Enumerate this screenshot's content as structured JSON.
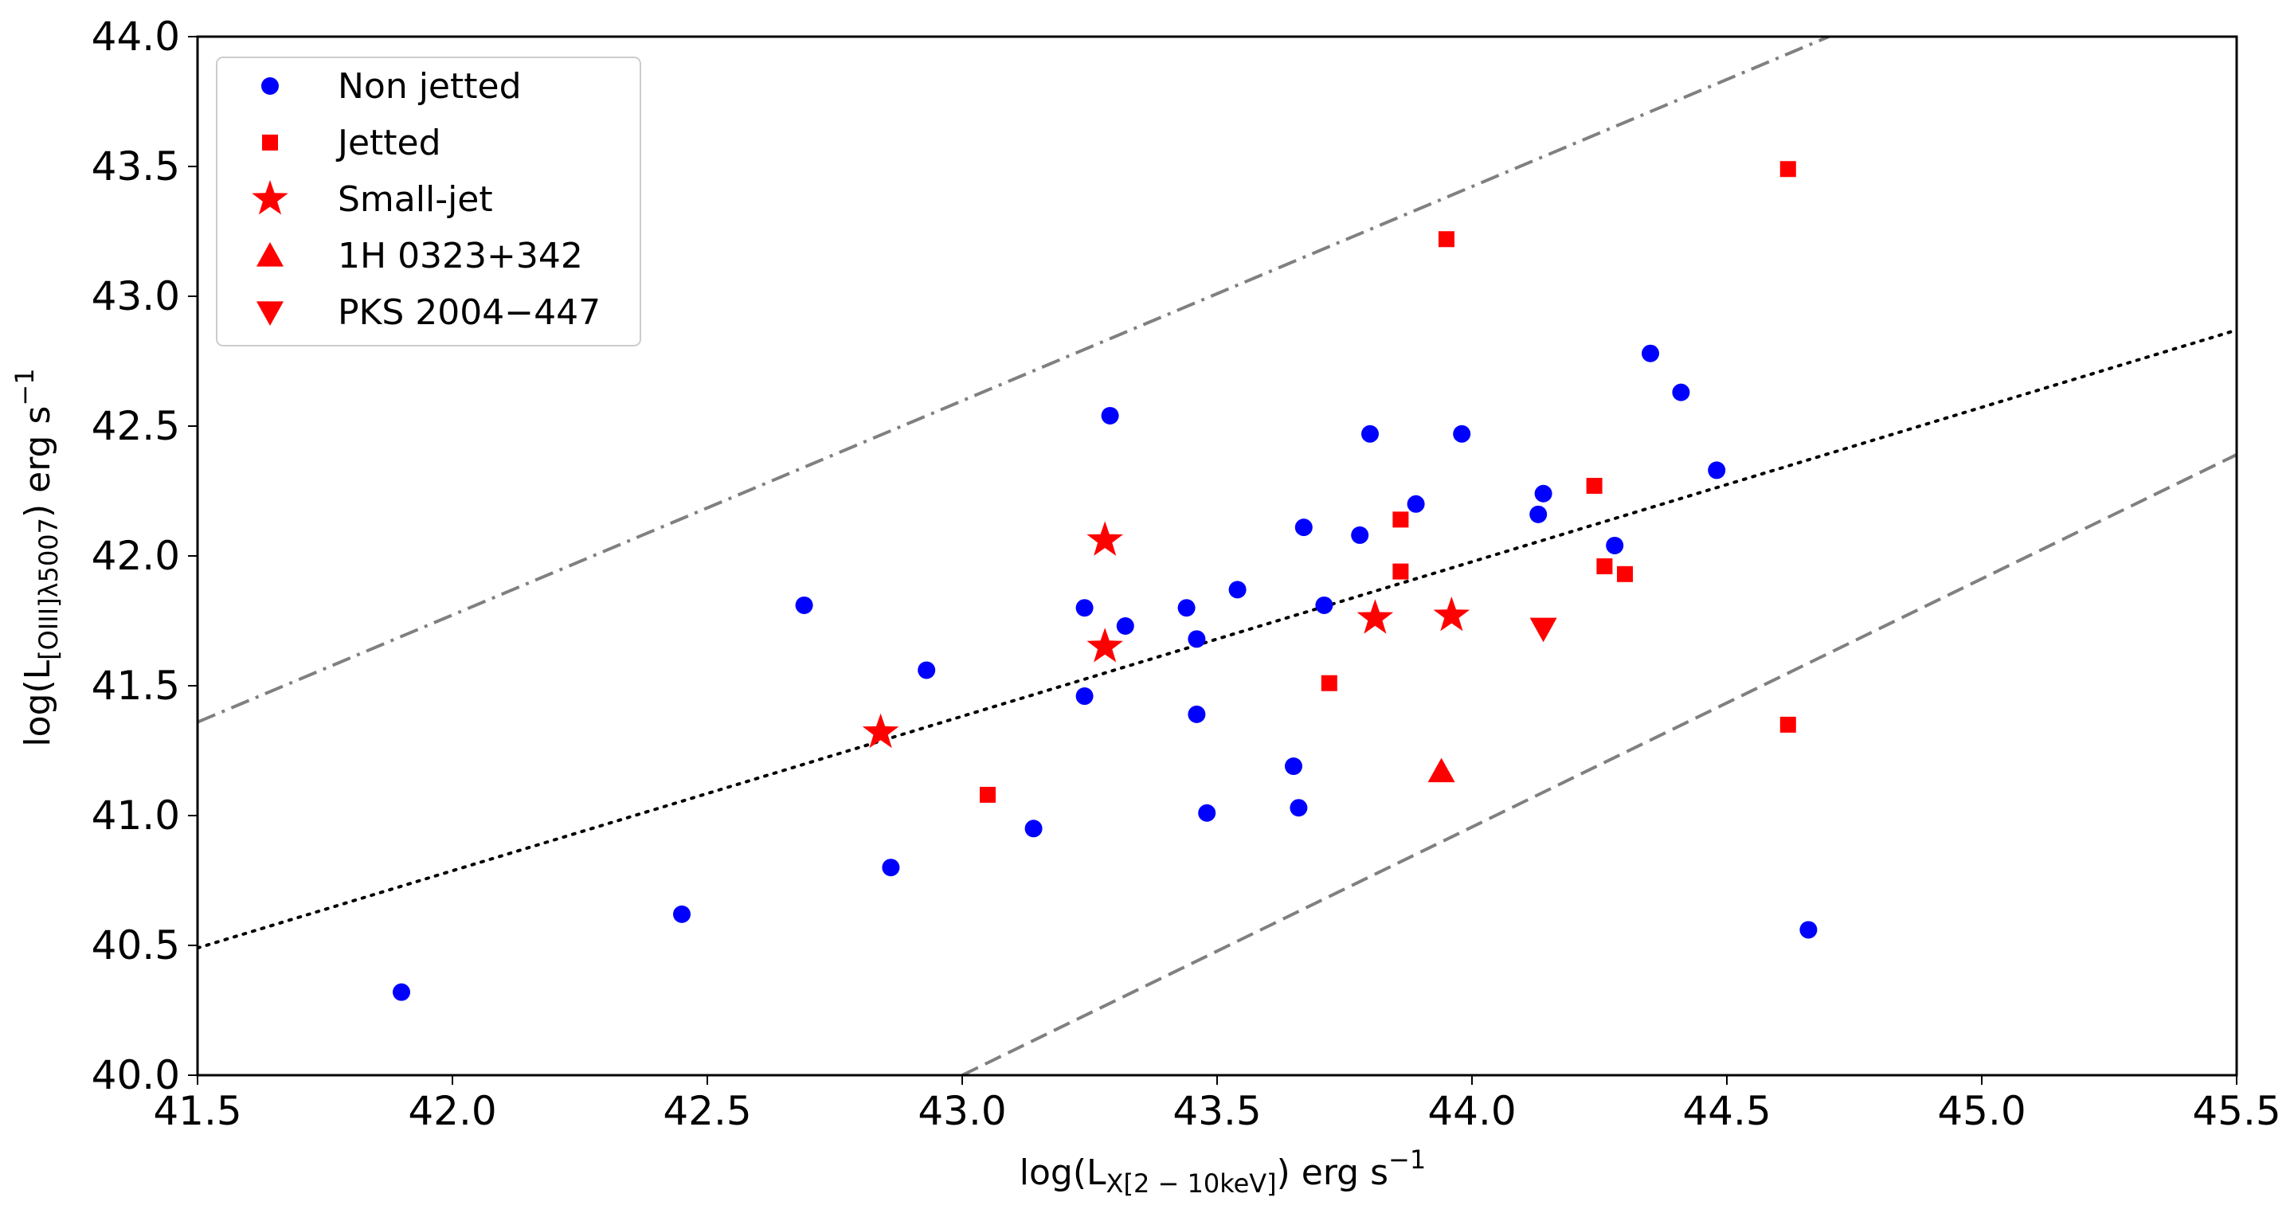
{
  "chart_data": {
    "type": "scatter",
    "xlabel": {
      "pre": "log(L",
      "sub": "X[2 − 10keV]",
      "post": ") erg s",
      "sup": "−1"
    },
    "ylabel": {
      "pre": "log(L",
      "sub": "[OIII]λ5007",
      "post": ") erg s",
      "sup": "−1"
    },
    "xlim": [
      41.5,
      45.5
    ],
    "ylim": [
      40.0,
      44.0
    ],
    "xticks": [
      "41.5",
      "42.0",
      "42.5",
      "43.0",
      "43.5",
      "44.0",
      "44.5",
      "45.0",
      "45.5"
    ],
    "yticks": [
      "40.0",
      "40.5",
      "41.0",
      "41.5",
      "42.0",
      "42.5",
      "43.0",
      "43.5",
      "44.0"
    ],
    "grid": false,
    "legend_position": "upper-left",
    "lines": [
      {
        "style": "dotted",
        "color": "#000000",
        "points": [
          [
            41.5,
            40.49
          ],
          [
            45.5,
            42.87
          ]
        ]
      },
      {
        "style": "dashdot",
        "color": "#808080",
        "points": [
          [
            41.5,
            41.36
          ],
          [
            44.7,
            44.0
          ]
        ]
      },
      {
        "style": "dashed",
        "color": "#808080",
        "points": [
          [
            43.0,
            40.0
          ],
          [
            45.5,
            42.39
          ]
        ]
      }
    ],
    "series": [
      {
        "name": "Non jetted",
        "marker": "circle",
        "color": "#0000ff",
        "points": [
          [
            41.9,
            40.32
          ],
          [
            42.45,
            40.62
          ],
          [
            42.69,
            41.81
          ],
          [
            42.86,
            40.8
          ],
          [
            42.93,
            41.56
          ],
          [
            43.14,
            40.95
          ],
          [
            43.24,
            41.8
          ],
          [
            43.24,
            41.46
          ],
          [
            43.29,
            42.54
          ],
          [
            43.32,
            41.73
          ],
          [
            43.44,
            41.8
          ],
          [
            43.46,
            41.68
          ],
          [
            43.46,
            41.39
          ],
          [
            43.48,
            41.01
          ],
          [
            43.54,
            41.87
          ],
          [
            43.65,
            41.19
          ],
          [
            43.66,
            41.03
          ],
          [
            43.67,
            42.11
          ],
          [
            43.71,
            41.81
          ],
          [
            43.78,
            42.08
          ],
          [
            43.8,
            42.47
          ],
          [
            43.89,
            42.2
          ],
          [
            43.98,
            42.47
          ],
          [
            44.13,
            42.16
          ],
          [
            44.14,
            42.24
          ],
          [
            44.28,
            42.04
          ],
          [
            44.35,
            42.78
          ],
          [
            44.41,
            42.63
          ],
          [
            44.48,
            42.33
          ],
          [
            44.66,
            40.56
          ]
        ]
      },
      {
        "name": "Jetted",
        "marker": "square",
        "color": "#ff0000",
        "points": [
          [
            43.05,
            41.08
          ],
          [
            43.72,
            41.51
          ],
          [
            43.86,
            42.14
          ],
          [
            43.86,
            41.94
          ],
          [
            43.95,
            43.22
          ],
          [
            44.24,
            42.27
          ],
          [
            44.26,
            41.96
          ],
          [
            44.3,
            41.93
          ],
          [
            44.62,
            43.49
          ],
          [
            44.62,
            41.35
          ]
        ]
      },
      {
        "name": "Small-jet",
        "marker": "star",
        "color": "#ff0000",
        "points": [
          [
            42.84,
            41.32
          ],
          [
            43.28,
            42.06
          ],
          [
            43.28,
            41.65
          ],
          [
            43.81,
            41.76
          ],
          [
            43.96,
            41.77
          ]
        ]
      },
      {
        "name": "1H 0323+342",
        "marker": "triangle-up",
        "color": "#ff0000",
        "points": [
          [
            43.94,
            41.17
          ]
        ]
      },
      {
        "name": "PKS 2004−447",
        "marker": "triangle-down",
        "color": "#ff0000",
        "points": [
          [
            44.14,
            41.72
          ]
        ]
      }
    ]
  }
}
